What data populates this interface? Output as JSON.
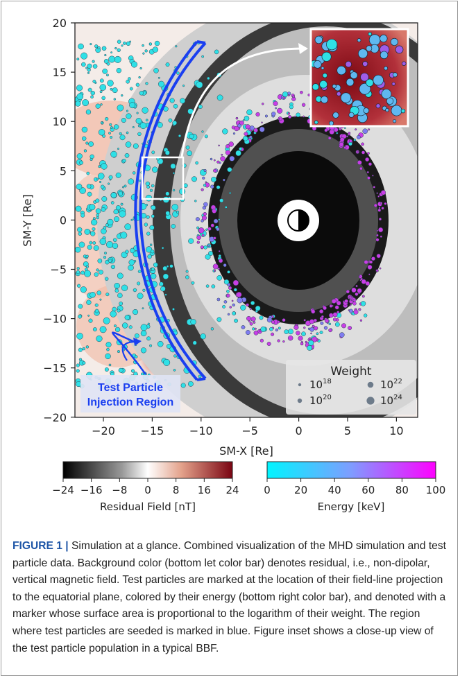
{
  "figure": {
    "x_axis_label": "SM-X [Re]",
    "y_axis_label": "SM-Y [Re]",
    "x_ticks": [
      "−20",
      "−15",
      "−10",
      "−5",
      "0",
      "5",
      "10"
    ],
    "y_ticks": [
      "20",
      "15",
      "10",
      "5",
      "0",
      "−5",
      "−10",
      "−15",
      "−20"
    ],
    "injection_label_line1": "Test Particle",
    "injection_label_line2": "Injection Region",
    "legend": {
      "title": "Weight",
      "entries": [
        {
          "base": "10",
          "exp": "18"
        },
        {
          "base": "10",
          "exp": "20"
        },
        {
          "base": "10",
          "exp": "22"
        },
        {
          "base": "10",
          "exp": "24"
        }
      ]
    },
    "colorbar_residual": {
      "label": "Residual Field [nT]",
      "ticks": [
        "−24",
        "−16",
        "−8",
        "0",
        "8",
        "16",
        "24"
      ],
      "colors": [
        "#000000",
        "#ffffff",
        "#7a0412"
      ]
    },
    "colorbar_energy": {
      "label": "Energy [keV]",
      "ticks": [
        "0",
        "20",
        "40",
        "60",
        "80",
        "100"
      ],
      "colors": [
        "#00f5ff",
        "#ff00ff"
      ]
    },
    "colors": {
      "injection_region": "#1a3ff0",
      "particle_low_energy": "#2fe0e6",
      "particle_high_energy": "#c83ee6"
    }
  },
  "caption": {
    "figure_label": "FIGURE 1 |",
    "text": " Simulation at a glance. Combined visualization of the MHD simulation and test particle data. Background color (bottom let color bar) denotes residual, i.e., non-dipolar, vertical magnetic field. Test particles are marked at the location of their field-line projection to the equatorial plane, colored by their energy (bottom right color bar), and denoted with a marker whose surface area is proportional to the logarithm of their weight. The region where test particles are seeded is marked in blue. Figure inset shows a close-up view of the test particle population in a typical BBF."
  }
}
